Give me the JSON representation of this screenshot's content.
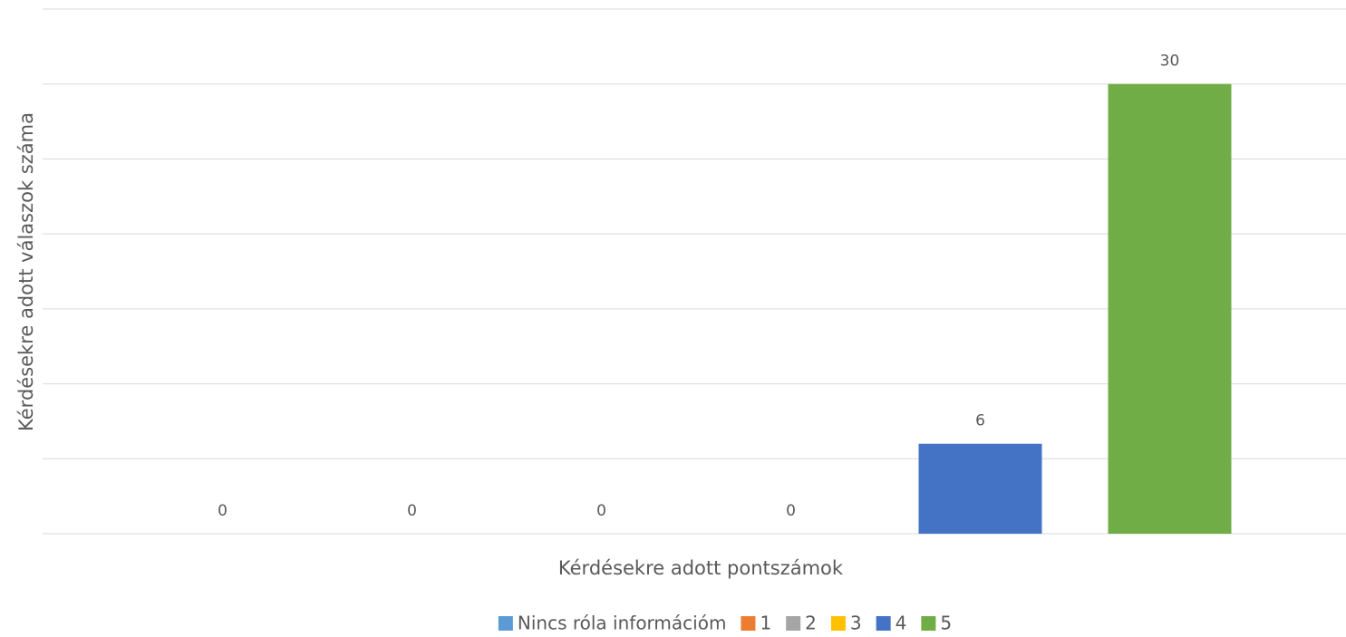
{
  "chart_data": {
    "type": "bar",
    "x_label": "Kérdésekre adott pontszámok",
    "y_label": "Kérdésekre adott válaszok száma",
    "categories": [
      null
    ],
    "series": [
      {
        "name": "Nincs róla információm",
        "color": "#5b9bd5",
        "values": [
          0
        ]
      },
      {
        "name": "1",
        "color": "#ed7d31",
        "values": [
          0
        ]
      },
      {
        "name": "2",
        "color": "#a5a5a5",
        "values": [
          0
        ]
      },
      {
        "name": "3",
        "color": "#ffc000",
        "values": [
          0
        ]
      },
      {
        "name": "4",
        "color": "#4472c4",
        "values": [
          6
        ]
      },
      {
        "name": "5",
        "color": "#70ad47",
        "values": [
          30
        ]
      }
    ],
    "ylim": [
      0,
      35
    ],
    "yticks": [
      0,
      5,
      10,
      15,
      20,
      25,
      30,
      35
    ],
    "grid": true,
    "legend": "bottom"
  }
}
